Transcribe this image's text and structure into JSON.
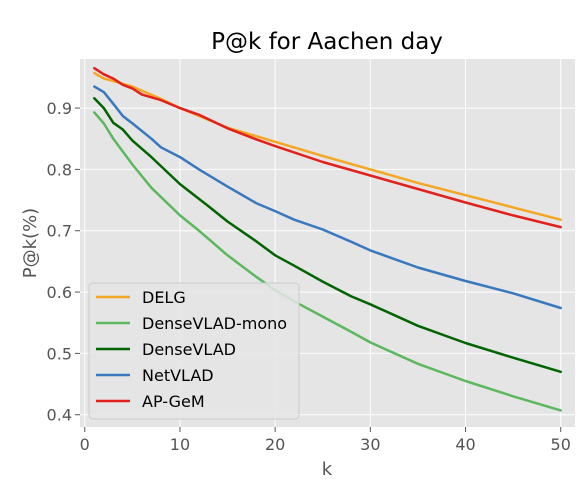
{
  "chart_data": {
    "type": "line",
    "title": "P@k for Aachen day",
    "xlabel": "k",
    "ylabel": "P@k(%)",
    "xlim": [
      -0.5,
      51.5
    ],
    "ylim": [
      0.38,
      0.98
    ],
    "xticks": [
      0,
      10,
      20,
      30,
      40,
      50
    ],
    "yticks": [
      0.4,
      0.5,
      0.6,
      0.7,
      0.8,
      0.9
    ],
    "xtick_labels": [
      "0",
      "10",
      "20",
      "30",
      "40",
      "50"
    ],
    "ytick_labels": [
      "0.4",
      "0.5",
      "0.6",
      "0.7",
      "0.8",
      "0.9"
    ],
    "grid": true,
    "legend_position": "lower-left",
    "series": [
      {
        "name": "DELG",
        "color": "#f5a623",
        "x": [
          1,
          2,
          3,
          5,
          8,
          10,
          15,
          20,
          25,
          30,
          35,
          40,
          45,
          50
        ],
        "y": [
          0.957,
          0.948,
          0.944,
          0.935,
          0.915,
          0.9,
          0.868,
          0.845,
          0.822,
          0.8,
          0.778,
          0.758,
          0.738,
          0.718
        ]
      },
      {
        "name": "DenseVLAD-mono",
        "color": "#5cb85c",
        "x": [
          1,
          2,
          3,
          5,
          7,
          10,
          12,
          15,
          18,
          20,
          22,
          25,
          28,
          30,
          35,
          40,
          45,
          50
        ],
        "y": [
          0.893,
          0.875,
          0.85,
          0.808,
          0.77,
          0.725,
          0.7,
          0.66,
          0.625,
          0.603,
          0.585,
          0.56,
          0.535,
          0.518,
          0.483,
          0.455,
          0.43,
          0.407
        ]
      },
      {
        "name": "DenseVLAD",
        "color": "#006400",
        "x": [
          1,
          2,
          3,
          4,
          5,
          7,
          10,
          13,
          15,
          18,
          20,
          22,
          25,
          28,
          30,
          35,
          40,
          45,
          50
        ],
        "y": [
          0.916,
          0.9,
          0.876,
          0.865,
          0.847,
          0.82,
          0.776,
          0.74,
          0.715,
          0.683,
          0.66,
          0.643,
          0.617,
          0.593,
          0.58,
          0.545,
          0.517,
          0.493,
          0.47
        ]
      },
      {
        "name": "NetVLAD",
        "color": "#3778bf",
        "x": [
          1,
          2,
          3,
          4,
          5,
          7,
          8,
          10,
          12,
          15,
          18,
          20,
          22,
          25,
          28,
          30,
          35,
          40,
          45,
          50
        ],
        "y": [
          0.935,
          0.926,
          0.907,
          0.887,
          0.875,
          0.85,
          0.836,
          0.82,
          0.8,
          0.772,
          0.745,
          0.732,
          0.718,
          0.702,
          0.682,
          0.668,
          0.64,
          0.618,
          0.598,
          0.574
        ]
      },
      {
        "name": "AP-GeM",
        "color": "#e2211c",
        "x": [
          1,
          2,
          3,
          4,
          5,
          6,
          8,
          10,
          12,
          15,
          18,
          20,
          25,
          30,
          35,
          40,
          45,
          50
        ],
        "y": [
          0.965,
          0.955,
          0.948,
          0.938,
          0.932,
          0.922,
          0.913,
          0.9,
          0.889,
          0.867,
          0.849,
          0.838,
          0.812,
          0.79,
          0.768,
          0.746,
          0.725,
          0.706
        ]
      }
    ]
  }
}
